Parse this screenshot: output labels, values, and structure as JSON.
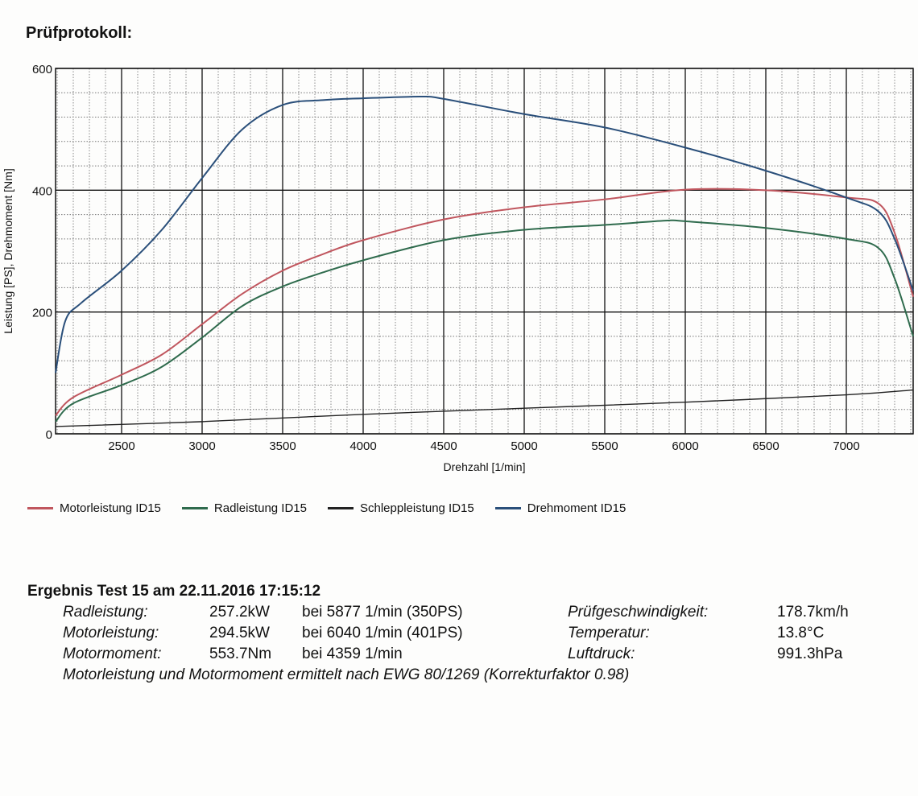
{
  "header": {
    "title": "Prüfprotokoll:"
  },
  "chart_data": {
    "type": "line",
    "title": "Prüfprotokoll",
    "xlabel": "Drehzahl [1/min]",
    "ylabel": "Leistung [PS], Drehmoment [Nm]",
    "xlim": [
      2090,
      7415
    ],
    "ylim": [
      0,
      600
    ],
    "x_ticks": [
      2500,
      3000,
      3500,
      4000,
      4500,
      5000,
      5500,
      6000,
      6500,
      7000
    ],
    "y_ticks": [
      0,
      200,
      400,
      600
    ],
    "grid": true,
    "legend_position": "bottom",
    "series": [
      {
        "name": "Motorleistung ID15",
        "color": "#c0565e",
        "x": [
          2090,
          2200,
          2500,
          2750,
          3000,
          3250,
          3500,
          3750,
          4000,
          4500,
          5000,
          5500,
          6000,
          6500,
          7000,
          7200,
          7300,
          7415
        ],
        "values": [
          30,
          60,
          97,
          130,
          180,
          230,
          268,
          295,
          318,
          352,
          372,
          385,
          401,
          400,
          388,
          378,
          330,
          225
        ]
      },
      {
        "name": "Radleistung ID15",
        "color": "#2f6b4d",
        "x": [
          2090,
          2200,
          2500,
          2750,
          3000,
          3250,
          3500,
          3750,
          4000,
          4500,
          5000,
          5500,
          5877,
          6000,
          6500,
          7000,
          7200,
          7300,
          7415
        ],
        "values": [
          20,
          50,
          80,
          110,
          158,
          210,
          242,
          265,
          285,
          318,
          335,
          343,
          350,
          349,
          338,
          320,
          305,
          255,
          160
        ]
      },
      {
        "name": "Schleppleistung ID15",
        "color": "#222222",
        "x": [
          2090,
          3000,
          4000,
          5000,
          6000,
          7000,
          7415
        ],
        "values": [
          12,
          20,
          32,
          42,
          52,
          64,
          72
        ]
      },
      {
        "name": "Drehmoment ID15",
        "color": "#2a4f7a",
        "x": [
          2090,
          2150,
          2250,
          2500,
          2750,
          3000,
          3250,
          3500,
          3750,
          4000,
          4359,
          4500,
          5000,
          5500,
          6000,
          6500,
          7000,
          7200,
          7300,
          7415
        ],
        "values": [
          100,
          185,
          215,
          268,
          335,
          420,
          500,
          540,
          548,
          551,
          553.7,
          550,
          525,
          503,
          470,
          432,
          388,
          365,
          320,
          235
        ]
      }
    ]
  },
  "legend": [
    {
      "label": "Motorleistung ID15",
      "color": "#c0565e"
    },
    {
      "label": "Radleistung ID15",
      "color": "#2f6b4d"
    },
    {
      "label": "Schleppleistung ID15",
      "color": "#222222"
    },
    {
      "label": "Drehmoment ID15",
      "color": "#2a4f7a"
    }
  ],
  "result": {
    "title": "Ergebnis Test 15 am 22.11.2016 17:15:12",
    "rows": [
      {
        "label": "Radleistung:",
        "value": "257.2kW",
        "detail": "bei 5877 1/min (350PS)",
        "label2": "Prüfgeschwindigkeit:",
        "value2": "178.7km/h"
      },
      {
        "label": "Motorleistung:",
        "value": "294.5kW",
        "detail": "bei 6040 1/min (401PS)",
        "label2": "Temperatur:",
        "value2": "13.8°C"
      },
      {
        "label": "Motormoment:",
        "value": "553.7Nm",
        "detail": "bei 4359 1/min",
        "label2": "Luftdruck:",
        "value2": "991.3hPa"
      }
    ],
    "note": "Motorleistung und Motormoment ermittelt nach EWG 80/1269 (Korrekturfaktor 0.98)"
  }
}
